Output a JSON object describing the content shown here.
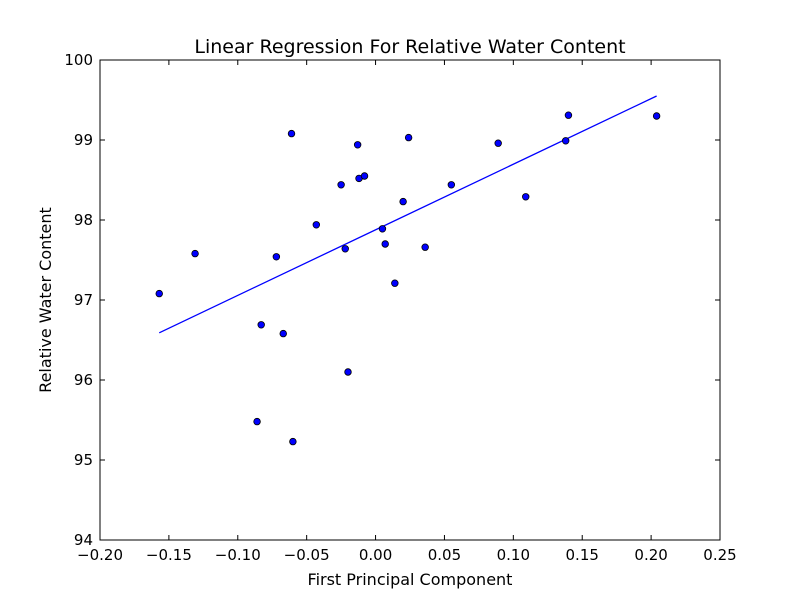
{
  "chart_data": {
    "type": "scatter",
    "title": "Linear Regression For Relative Water Content",
    "xlabel": "First Principal Component",
    "ylabel": "Relative Water Content",
    "xlim": [
      -0.2,
      0.25
    ],
    "ylim": [
      94,
      100
    ],
    "xticks": [
      "−0.20",
      "−0.15",
      "−0.10",
      "−0.05",
      "0.00",
      "0.05",
      "0.10",
      "0.15",
      "0.20",
      "0.25"
    ],
    "yticks": [
      "94",
      "95",
      "96",
      "97",
      "98",
      "99",
      "100"
    ],
    "grid": false,
    "points": [
      {
        "x": -0.157,
        "y": 97.08
      },
      {
        "x": -0.131,
        "y": 97.58
      },
      {
        "x": -0.086,
        "y": 95.48
      },
      {
        "x": -0.083,
        "y": 96.69
      },
      {
        "x": -0.072,
        "y": 97.54
      },
      {
        "x": -0.067,
        "y": 96.58
      },
      {
        "x": -0.061,
        "y": 99.08
      },
      {
        "x": -0.06,
        "y": 95.23
      },
      {
        "x": -0.043,
        "y": 97.94
      },
      {
        "x": -0.025,
        "y": 98.44
      },
      {
        "x": -0.022,
        "y": 97.64
      },
      {
        "x": -0.02,
        "y": 96.1
      },
      {
        "x": -0.013,
        "y": 98.94
      },
      {
        "x": -0.012,
        "y": 98.52
      },
      {
        "x": -0.008,
        "y": 98.55
      },
      {
        "x": 0.005,
        "y": 97.89
      },
      {
        "x": 0.007,
        "y": 97.7
      },
      {
        "x": 0.014,
        "y": 97.21
      },
      {
        "x": 0.02,
        "y": 98.23
      },
      {
        "x": 0.024,
        "y": 99.03
      },
      {
        "x": 0.036,
        "y": 97.66
      },
      {
        "x": 0.055,
        "y": 98.44
      },
      {
        "x": 0.089,
        "y": 98.96
      },
      {
        "x": 0.109,
        "y": 98.29
      },
      {
        "x": 0.138,
        "y": 98.99
      },
      {
        "x": 0.14,
        "y": 99.31
      },
      {
        "x": 0.204,
        "y": 99.3
      }
    ],
    "regression_line": {
      "x": [
        -0.157,
        0.204
      ],
      "y": [
        96.59,
        99.55
      ]
    },
    "colors": {
      "point_fill": "#0000ff",
      "point_edge": "#000000",
      "line": "#0000ff"
    }
  }
}
